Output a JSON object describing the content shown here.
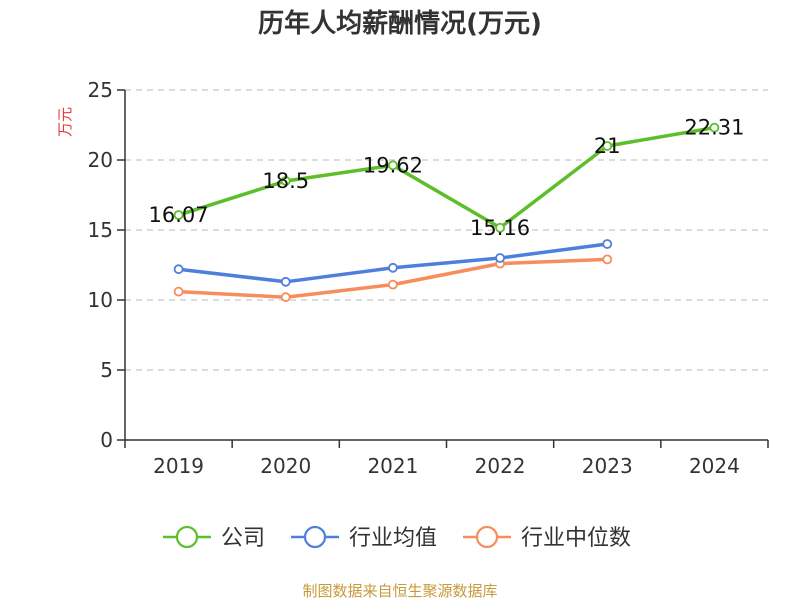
{
  "chart_data": {
    "type": "line",
    "title": "历年人均薪酬情况(万元)",
    "xlabel": "",
    "ylabel": "万元",
    "categories": [
      "2019",
      "2020",
      "2021",
      "2022",
      "2023",
      "2024"
    ],
    "ylim": [
      0,
      25
    ],
    "yticks": [
      0,
      5,
      10,
      15,
      20,
      25
    ],
    "grid": true,
    "legend_position": "bottom",
    "series": [
      {
        "name": "公司",
        "color": "#5cbf2a",
        "values": [
          16.07,
          18.5,
          19.62,
          15.16,
          21,
          22.31
        ],
        "labels": [
          "16.07",
          "18.5",
          "19.62",
          "15.16",
          "21",
          "22.31"
        ],
        "show_labels": true
      },
      {
        "name": "行业均值",
        "color": "#4e7fdc",
        "values": [
          12.2,
          11.3,
          12.3,
          13.0,
          14.0,
          null
        ],
        "show_labels": false
      },
      {
        "name": "行业中位数",
        "color": "#f78d5a",
        "values": [
          10.6,
          10.2,
          11.1,
          12.6,
          12.9,
          null
        ],
        "show_labels": false
      }
    ]
  },
  "source": "制图数据来自恒生聚源数据库"
}
